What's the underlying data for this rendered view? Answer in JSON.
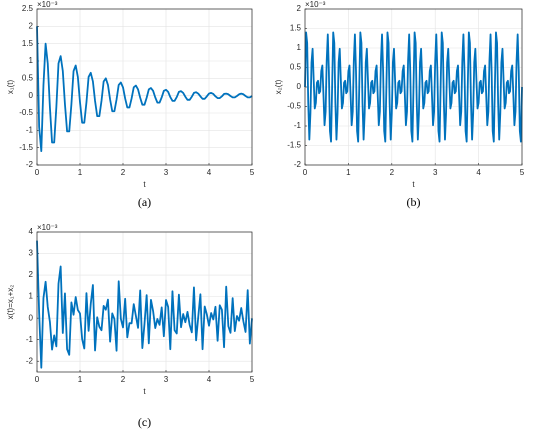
{
  "chart_data": [
    {
      "type": "line",
      "caption": "(a)",
      "x_label": "t",
      "y_label": "x₁(t)",
      "y_multiplier": "×10⁻³",
      "color": "#0072bd",
      "grid": true,
      "xlim": [
        0,
        5
      ],
      "xticks": [
        0,
        1,
        2,
        3,
        4,
        5
      ],
      "ylim": [
        -2,
        2.5
      ],
      "yticks": [
        -2,
        -1.5,
        -1,
        -0.5,
        0,
        0.5,
        1,
        1.5,
        2,
        2.5
      ],
      "x": [
        0,
        0.05,
        0.1,
        0.15,
        0.2,
        0.25,
        0.3,
        0.35,
        0.4,
        0.45,
        0.5,
        0.55,
        0.6,
        0.65,
        0.7,
        0.75,
        0.8,
        0.85,
        0.9,
        0.95,
        1,
        1.05,
        1.1,
        1.15,
        1.2,
        1.25,
        1.3,
        1.35,
        1.4,
        1.45,
        1.5,
        1.55,
        1.6,
        1.65,
        1.7,
        1.75,
        1.8,
        1.85,
        1.9,
        1.95,
        2,
        2.05,
        2.1,
        2.15,
        2.2,
        2.25,
        2.3,
        2.35,
        2.4,
        2.45,
        2.5,
        2.55,
        2.6,
        2.65,
        2.7,
        2.75,
        2.8,
        2.85,
        2.9,
        2.95,
        3,
        3.05,
        3.1,
        3.15,
        3.2,
        3.25,
        3.3,
        3.35,
        3.4,
        3.45,
        3.5,
        3.55,
        3.6,
        3.65,
        3.7,
        3.75,
        3.8,
        3.85,
        3.9,
        3.95,
        4,
        4.05,
        4.1,
        4.15,
        4.2,
        4.25,
        4.3,
        4.35,
        4.4,
        4.45,
        4.5,
        4.55,
        4.6,
        4.65,
        4.7,
        4.75,
        4.8,
        4.85,
        4.9,
        4.95,
        5
      ],
      "values": [
        2,
        -0.9,
        -1.6,
        0.3,
        1.5,
        0.93,
        -0.33,
        -1.35,
        -1.35,
        -0.33,
        0.93,
        1.14,
        0.71,
        -0.25,
        -1.03,
        -1.03,
        -0.25,
        0.71,
        0.87,
        0.54,
        -0.19,
        -0.78,
        -0.78,
        -0.19,
        0.54,
        0.66,
        0.41,
        -0.15,
        -0.59,
        -0.59,
        -0.15,
        0.41,
        0.5,
        0.31,
        -0.11,
        -0.45,
        -0.45,
        -0.11,
        0.31,
        0.38,
        0.24,
        -0.08,
        -0.34,
        -0.34,
        -0.08,
        0.24,
        0.29,
        0.18,
        -0.06,
        -0.26,
        -0.26,
        -0.06,
        0.18,
        0.22,
        0.14,
        -0.05,
        -0.2,
        -0.2,
        -0.05,
        0.14,
        0.17,
        0.11,
        -0.04,
        -0.15,
        -0.15,
        -0.04,
        0.11,
        0.13,
        0.08,
        -0.03,
        -0.12,
        -0.12,
        -0.03,
        0.08,
        0.1,
        0.06,
        -0.02,
        -0.09,
        -0.09,
        -0.02,
        0.06,
        0.08,
        0.05,
        -0.02,
        -0.07,
        -0.07,
        -0.02,
        0.05,
        0.06,
        0.04,
        -0.01,
        -0.05,
        -0.05,
        -0.01,
        0.04,
        0.06,
        0.04,
        -0.01,
        -0.05,
        -0.05,
        -0.01
      ]
    },
    {
      "type": "line",
      "caption": "(b)",
      "x_label": "t",
      "y_label": "x₂(t)",
      "y_multiplier": "×10⁻³",
      "color": "#0072bd",
      "grid": true,
      "xlim": [
        0,
        5
      ],
      "xticks": [
        0,
        1,
        2,
        3,
        4,
        5
      ],
      "ylim": [
        -2,
        2
      ],
      "yticks": [
        -2,
        -1.5,
        -1,
        -0.5,
        0,
        0.5,
        1,
        1.5,
        2
      ],
      "x": [
        0,
        0.025,
        0.05,
        0.075,
        0.1,
        0.125,
        0.15,
        0.175,
        0.2,
        0.225,
        0.25,
        0.275,
        0.3,
        0.325,
        0.35,
        0.375,
        0.4,
        0.425,
        0.45,
        0.475,
        0.5,
        0.525,
        0.55,
        0.575,
        0.6,
        0.625,
        0.65,
        0.675,
        0.7,
        0.725,
        0.75,
        0.775,
        0.8,
        0.825,
        0.85,
        0.875,
        0.9,
        0.925,
        0.95,
        0.975,
        1,
        1.025,
        1.05,
        1.075,
        1.1,
        1.125,
        1.15,
        1.175,
        1.2,
        1.225,
        1.25,
        1.275,
        1.3,
        1.325,
        1.35,
        1.375,
        1.4,
        1.425,
        1.45,
        1.475,
        1.5,
        1.525,
        1.55,
        1.575,
        1.6,
        1.625,
        1.65,
        1.675,
        1.7,
        1.725,
        1.75,
        1.775,
        1.8,
        1.825,
        1.85,
        1.875,
        1.9,
        1.925,
        1.95,
        1.975,
        2,
        2.025,
        2.05,
        2.075,
        2.1,
        2.125,
        2.15,
        2.175,
        2.2,
        2.225,
        2.25,
        2.275,
        2.3,
        2.325,
        2.35,
        2.375,
        2.4,
        2.425,
        2.45,
        2.475,
        2.5,
        2.525,
        2.55,
        2.575,
        2.6,
        2.625,
        2.65,
        2.675,
        2.7,
        2.725,
        2.75,
        2.775,
        2.8,
        2.825,
        2.85,
        2.875,
        2.9,
        2.925,
        2.95,
        2.975,
        3,
        3.025,
        3.05,
        3.075,
        3.1,
        3.125,
        3.15,
        3.175,
        3.2,
        3.225,
        3.25,
        3.275,
        3.3,
        3.325,
        3.35,
        3.375,
        3.4,
        3.425,
        3.45,
        3.475,
        3.5,
        3.525,
        3.55,
        3.575,
        3.6,
        3.625,
        3.65,
        3.675,
        3.7,
        3.725,
        3.75,
        3.775,
        3.8,
        3.825,
        3.85,
        3.875,
        3.9,
        3.925,
        3.95,
        3.975,
        4,
        4.025,
        4.05,
        4.075,
        4.1,
        4.125,
        4.15,
        4.175,
        4.2,
        4.225,
        4.25,
        4.275,
        4.3,
        4.325,
        4.35,
        4.375,
        4.4,
        4.425,
        4.45,
        4.475,
        4.5,
        4.525,
        4.55,
        4.575,
        4.6,
        4.625,
        4.65,
        4.675,
        4.7,
        4.725,
        4.75,
        4.775,
        4.8,
        4.825,
        4.85,
        4.875,
        4.9,
        4.925,
        4.95,
        4.975,
        5
      ],
      "values": [
        0,
        1.4,
        1.13,
        -0.41,
        -1.35,
        -0.67,
        0.63,
        0.98,
        0.19,
        -0.55,
        -0.41,
        0.11,
        0.16,
        -0.16,
        -0.11,
        0.41,
        0.55,
        -0.19,
        -0.98,
        -0.63,
        0.67,
        1.35,
        0.41,
        -1.13,
        -1.4,
        0,
        1.4,
        1.13,
        -0.41,
        -1.35,
        -0.67,
        0.63,
        0.98,
        0.19,
        -0.55,
        -0.41,
        0.11,
        0.16,
        -0.16,
        -0.11,
        0.41,
        0.55,
        -0.19,
        -0.98,
        -0.63,
        0.67,
        1.35,
        0.41,
        -1.13,
        -1.4,
        0,
        1.4,
        1.13,
        -0.41,
        -1.35,
        -0.67,
        0.63,
        0.98,
        0.19,
        -0.55,
        -0.41,
        0.11,
        0.16,
        -0.16,
        -0.11,
        0.41,
        0.55,
        -0.19,
        -0.98,
        -0.63,
        0.67,
        1.35,
        0.41,
        -1.13,
        -1.4,
        0,
        1.4,
        1.13,
        -0.41,
        -1.35,
        -0.67,
        0.63,
        0.98,
        0.19,
        -0.55,
        -0.41,
        0.11,
        0.16,
        -0.16,
        -0.11,
        0.41,
        0.55,
        -0.19,
        -0.98,
        -0.63,
        0.67,
        1.35,
        0.41,
        -1.13,
        -1.4,
        0,
        1.4,
        1.13,
        -0.41,
        -1.35,
        -0.67,
        0.63,
        0.98,
        0.19,
        -0.55,
        -0.41,
        0.11,
        0.16,
        -0.16,
        -0.11,
        0.41,
        0.55,
        -0.19,
        -0.98,
        -0.63,
        0.67,
        1.35,
        0.41,
        -1.13,
        -1.4,
        0,
        1.4,
        1.13,
        -0.41,
        -1.35,
        -0.67,
        0.63,
        0.98,
        0.19,
        -0.55,
        -0.41,
        0.11,
        0.16,
        -0.16,
        -0.11,
        0.41,
        0.55,
        -0.19,
        -0.98,
        -0.63,
        0.67,
        1.35,
        0.41,
        -1.13,
        -1.4,
        0,
        1.4,
        1.13,
        -0.41,
        -1.35,
        -0.67,
        0.63,
        0.98,
        0.19,
        -0.55,
        -0.41,
        0.11,
        0.16,
        -0.16,
        -0.11,
        0.41,
        0.55,
        -0.19,
        -0.98,
        -0.63,
        0.67,
        1.35,
        0.41,
        -1.13,
        -1.4,
        0,
        1.4,
        1.13,
        -0.41,
        -1.35,
        -0.67,
        0.63,
        0.98,
        0.19,
        -0.55,
        -0.41,
        0.11,
        0.16,
        -0.16,
        -0.11,
        0.41,
        0.55,
        -0.19,
        -0.98,
        -0.63,
        0.67,
        1.35,
        0.41,
        -1.13,
        -1.4,
        0
      ]
    },
    {
      "type": "line",
      "caption": "(c)",
      "x_label": "t",
      "y_label": "x(t)=x₁+x₂",
      "y_multiplier": "×10⁻³",
      "color": "#0072bd",
      "grid": true,
      "xlim": [
        0,
        5
      ],
      "xticks": [
        0,
        1,
        2,
        3,
        4,
        5
      ],
      "ylim": [
        -2.5,
        4
      ],
      "yticks": [
        -2,
        -1,
        0,
        1,
        2,
        3,
        4
      ],
      "x": [
        0,
        0.05,
        0.1,
        0.15,
        0.2,
        0.25,
        0.3,
        0.35,
        0.4,
        0.45,
        0.5,
        0.55,
        0.6,
        0.65,
        0.7,
        0.75,
        0.8,
        0.85,
        0.9,
        0.95,
        1,
        1.05,
        1.1,
        1.15,
        1.2,
        1.25,
        1.3,
        1.35,
        1.4,
        1.45,
        1.5,
        1.55,
        1.6,
        1.65,
        1.7,
        1.75,
        1.8,
        1.85,
        1.9,
        1.95,
        2,
        2.05,
        2.1,
        2.15,
        2.2,
        2.25,
        2.3,
        2.35,
        2.4,
        2.45,
        2.5,
        2.55,
        2.6,
        2.65,
        2.7,
        2.75,
        2.8,
        2.85,
        2.9,
        2.95,
        3,
        3.05,
        3.1,
        3.15,
        3.2,
        3.25,
        3.3,
        3.35,
        3.4,
        3.45,
        3.5,
        3.55,
        3.6,
        3.65,
        3.7,
        3.75,
        3.8,
        3.85,
        3.9,
        3.95,
        4,
        4.05,
        4.1,
        4.15,
        4.2,
        4.25,
        4.3,
        4.35,
        4.4,
        4.45,
        4.5,
        4.55,
        4.6,
        4.65,
        4.7,
        4.75,
        4.8,
        4.85,
        4.9,
        4.95,
        5
      ],
      "values": [
        3.6,
        0.23,
        -2.3,
        0.93,
        1.69,
        0.52,
        -0.17,
        -1.46,
        -0.8,
        -1.31,
        1.6,
        2.4,
        -0.69,
        1.15,
        -1.44,
        -1.7,
        0.73,
        0.16,
        0.98,
        0.38,
        0.22,
        -0.97,
        -1.41,
        1.16,
        -0.59,
        0.66,
        1.54,
        -1.5,
        0.04,
        -0.4,
        -0.56,
        0.57,
        0.39,
        0.86,
        -1.09,
        0.22,
        -0.04,
        -1.51,
        1.71,
        -0.03,
        -0.43,
        0.9,
        -0.89,
        -0.23,
        -0.24,
        0.65,
        0.1,
        -0.45,
        1.29,
        -1.39,
        -0.26,
        1.07,
        -1.17,
        0.85,
        0.33,
        -0.46,
        -0.04,
        -0.31,
        0.5,
        -0.84,
        0.84,
        0.52,
        -1.44,
        1.25,
        -0.56,
        -0.71,
        1.09,
        -0.42,
        0.19,
        -0.19,
        0.29,
        -0.31,
        -0.66,
        1.43,
        -1.03,
        0.06,
        1.11,
        -1.44,
        0.54,
        0.17,
        -0.35,
        0.24,
        -0.06,
        0.53,
        -1.05,
        0.6,
        0.39,
        -1.35,
        1.46,
        -0.37,
        -0.68,
        0.93,
        -0.6,
        0.1,
        -0.12,
        0.47,
        -0.15,
        -0.64,
        1.3,
        -1.18,
        -0.01
      ]
    }
  ]
}
